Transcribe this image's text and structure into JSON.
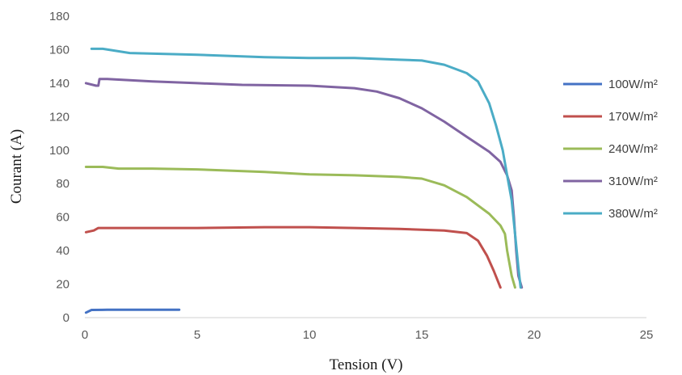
{
  "chart_data": {
    "type": "line",
    "title": "",
    "xlabel": "Tension (V)",
    "ylabel": "Courant (A)",
    "xlim": [
      0,
      25
    ],
    "ylim": [
      0,
      180
    ],
    "xticks": [
      0,
      5,
      10,
      15,
      20,
      25
    ],
    "yticks": [
      0,
      20,
      40,
      60,
      80,
      100,
      120,
      140,
      160,
      180
    ],
    "grid": false,
    "legend_position": "right",
    "series": [
      {
        "name": "100W/m²",
        "color": "#4472C4",
        "points": [
          [
            0.05,
            3
          ],
          [
            0.3,
            4.6
          ],
          [
            1,
            4.7
          ],
          [
            2,
            4.7
          ],
          [
            3,
            4.7
          ],
          [
            4.2,
            4.7
          ]
        ]
      },
      {
        "name": "170W/m²",
        "color": "#C0504D",
        "points": [
          [
            0.05,
            51
          ],
          [
            0.4,
            52
          ],
          [
            0.6,
            53.5
          ],
          [
            2,
            53.5
          ],
          [
            5,
            53.5
          ],
          [
            8,
            54
          ],
          [
            10,
            54
          ],
          [
            12,
            53.5
          ],
          [
            14,
            53
          ],
          [
            16,
            52
          ],
          [
            17,
            50.5
          ],
          [
            17.5,
            46
          ],
          [
            17.9,
            37
          ],
          [
            18.2,
            28
          ],
          [
            18.5,
            18
          ]
        ]
      },
      {
        "name": "240W/m²",
        "color": "#9BBB59",
        "points": [
          [
            0.05,
            90
          ],
          [
            0.8,
            90
          ],
          [
            1.5,
            89
          ],
          [
            3,
            89
          ],
          [
            5,
            88.5
          ],
          [
            8,
            87
          ],
          [
            10,
            85.5
          ],
          [
            12,
            85
          ],
          [
            14,
            84
          ],
          [
            15,
            83
          ],
          [
            16,
            79
          ],
          [
            17,
            72
          ],
          [
            18,
            62
          ],
          [
            18.5,
            55
          ],
          [
            18.7,
            50
          ],
          [
            18.8,
            40
          ],
          [
            19.0,
            25
          ],
          [
            19.15,
            18
          ]
        ]
      },
      {
        "name": "310W/m²",
        "color": "#8064A2",
        "points": [
          [
            0.05,
            140
          ],
          [
            0.5,
            138.5
          ],
          [
            0.6,
            138.5
          ],
          [
            0.65,
            142.5
          ],
          [
            1,
            142.5
          ],
          [
            3,
            141
          ],
          [
            5,
            140
          ],
          [
            7,
            139
          ],
          [
            10,
            138.5
          ],
          [
            12,
            137
          ],
          [
            13,
            135
          ],
          [
            14,
            131
          ],
          [
            15,
            125
          ],
          [
            16,
            117
          ],
          [
            17,
            108
          ],
          [
            18,
            99
          ],
          [
            18.5,
            93
          ],
          [
            18.8,
            85
          ],
          [
            19.0,
            76
          ],
          [
            19.1,
            60
          ],
          [
            19.2,
            40
          ],
          [
            19.3,
            25
          ],
          [
            19.45,
            18
          ]
        ]
      },
      {
        "name": "380W/m²",
        "color": "#4BACC6",
        "points": [
          [
            0.3,
            160.5
          ],
          [
            0.8,
            160.5
          ],
          [
            2,
            158
          ],
          [
            5,
            157
          ],
          [
            8,
            155.5
          ],
          [
            10,
            155
          ],
          [
            12,
            155
          ],
          [
            14,
            154
          ],
          [
            15,
            153.5
          ],
          [
            16,
            151
          ],
          [
            17,
            146
          ],
          [
            17.5,
            141
          ],
          [
            18,
            128
          ],
          [
            18.3,
            115
          ],
          [
            18.6,
            100
          ],
          [
            18.8,
            85
          ],
          [
            19.0,
            70
          ],
          [
            19.15,
            50
          ],
          [
            19.3,
            30
          ],
          [
            19.4,
            18
          ]
        ]
      }
    ]
  }
}
